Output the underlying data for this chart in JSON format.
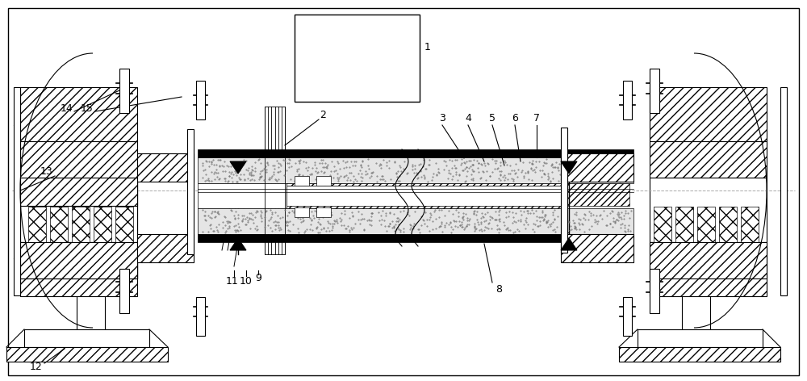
{
  "bg_color": "#ffffff",
  "fig_width": 10.0,
  "fig_height": 4.72,
  "dpi": 100
}
